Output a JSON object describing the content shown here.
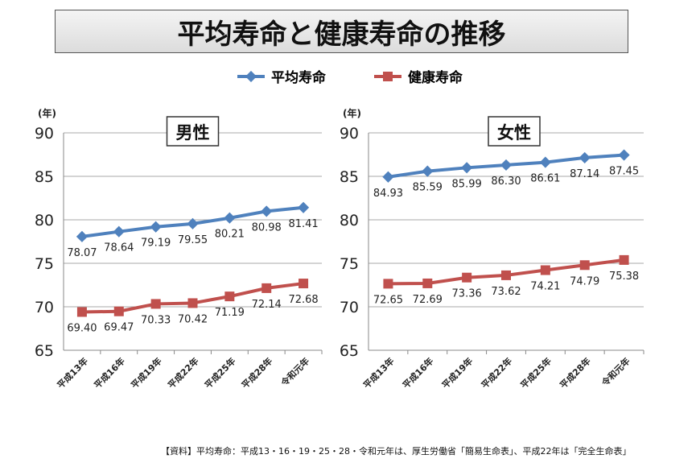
{
  "title": "平均寿命と健康寿命の推移",
  "legend": [
    {
      "name": "平均寿命",
      "color": "#4F81BD",
      "marker": "diamond"
    },
    {
      "name": "健康寿命",
      "color": "#C0504D",
      "marker": "square"
    }
  ],
  "source": "【資料】平均寿命：平成13・16・19・25・28・令和元年は、厚生労働省「簡易生命表」、平成22年は「完全生命表」",
  "chart_data": [
    {
      "type": "line",
      "title": "男性",
      "ylabel": "(年)",
      "ylim": [
        65,
        90
      ],
      "yticks": [
        65,
        70,
        75,
        80,
        85,
        90
      ],
      "grid": true,
      "categories": [
        "平成13年",
        "平成16年",
        "平成19年",
        "平成22年",
        "平成25年",
        "平成28年",
        "令和元年"
      ],
      "series": [
        {
          "name": "平均寿命",
          "values": [
            78.07,
            78.64,
            79.19,
            79.55,
            80.21,
            80.98,
            81.41
          ]
        },
        {
          "name": "健康寿命",
          "values": [
            69.4,
            69.47,
            70.33,
            70.42,
            71.19,
            72.14,
            72.68
          ]
        }
      ]
    },
    {
      "type": "line",
      "title": "女性",
      "ylabel": "(年)",
      "ylim": [
        65,
        90
      ],
      "yticks": [
        65,
        70,
        75,
        80,
        85,
        90
      ],
      "grid": true,
      "categories": [
        "平成13年",
        "平成16年",
        "平成19年",
        "平成22年",
        "平成25年",
        "平成28年",
        "令和元年"
      ],
      "series": [
        {
          "name": "平均寿命",
          "values": [
            84.93,
            85.59,
            85.99,
            86.3,
            86.61,
            87.14,
            87.45
          ]
        },
        {
          "name": "健康寿命",
          "values": [
            72.65,
            72.69,
            73.36,
            73.62,
            74.21,
            74.79,
            75.38
          ]
        }
      ]
    }
  ]
}
